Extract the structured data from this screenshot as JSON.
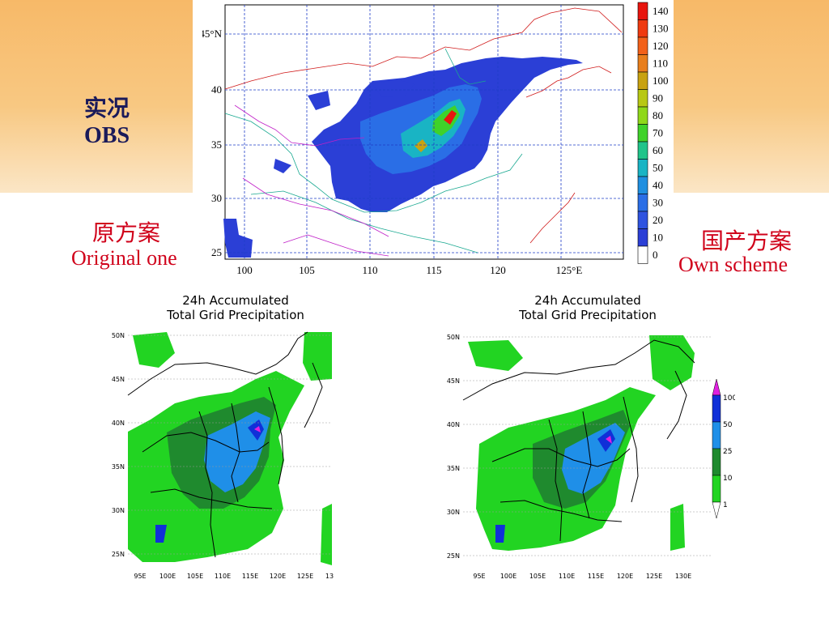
{
  "labels": {
    "obs_cn": "实况",
    "obs_en": "OBS",
    "original_cn": "原方案",
    "original_en": "Original one",
    "own_cn": "国产方案",
    "own_en": "Own scheme"
  },
  "obs_map": {
    "lat_labels": [
      "45°N",
      "40",
      "35",
      "30",
      "25"
    ],
    "lon_labels": [
      "100",
      "105",
      "110",
      "115",
      "120",
      "125°E"
    ],
    "colorbar": {
      "ticks": [
        "140",
        "130",
        "120",
        "110",
        "100",
        "90",
        "80",
        "70",
        "60",
        "50",
        "40",
        "30",
        "20",
        "10",
        "0"
      ],
      "colors": [
        "#e8150e",
        "#ef3a10",
        "#f2611a",
        "#e87e1c",
        "#c8a210",
        "#b8c814",
        "#8fd81a",
        "#3fd22a",
        "#20c48a",
        "#19b4c4",
        "#1f8fe0",
        "#2a6ee6",
        "#2f53e0",
        "#2b3fd6",
        "#ffffff"
      ]
    }
  },
  "sim_maps": [
    {
      "title_line1": "24h Accumulated",
      "title_line2": "Total Grid Precipitation",
      "lat_labels": [
        "50N",
        "45N",
        "40N",
        "35N",
        "30N",
        "25N"
      ],
      "lon_labels": [
        "95E",
        "100E",
        "105E",
        "110E",
        "115E",
        "120E",
        "125E",
        "13"
      ]
    },
    {
      "title_line1": "24h Accumulated",
      "title_line2": "Total Grid Precipitation",
      "lat_labels": [
        "50N",
        "45N",
        "40N",
        "35N",
        "30N",
        "25N"
      ],
      "lon_labels": [
        "95E",
        "100E",
        "105E",
        "110E",
        "115E",
        "120E",
        "125E",
        "130E"
      ],
      "colorbar": {
        "ticks": [
          "100",
          "50",
          "25",
          "10",
          "1"
        ],
        "colors": [
          "#e020e0",
          "#1030d8",
          "#1f8fe8",
          "#1f8a2e",
          "#22d422"
        ]
      }
    }
  ]
}
